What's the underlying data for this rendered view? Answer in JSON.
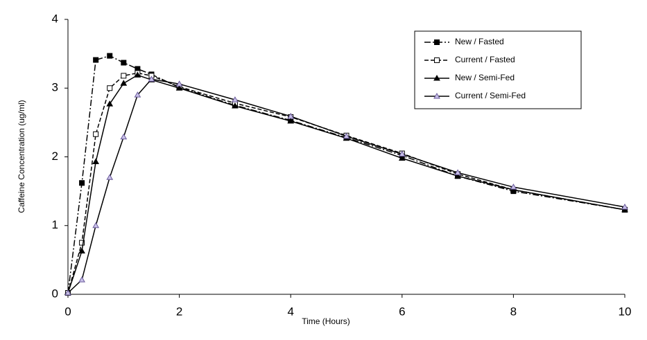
{
  "chart_data": {
    "type": "line",
    "xlabel": "Time (Hours)",
    "ylabel": "Caffeine Concentration (ug/ml)",
    "x": [
      0,
      0.25,
      0.5,
      0.75,
      1,
      1.25,
      1.5,
      2,
      3,
      4,
      5,
      6,
      7,
      8,
      10
    ],
    "xlim": [
      0,
      10
    ],
    "xticks": [
      0,
      2,
      4,
      6,
      8,
      10
    ],
    "ylim": [
      0,
      4
    ],
    "yticks": [
      0,
      1,
      2,
      3,
      4
    ],
    "grid": false,
    "legend": "top-right",
    "series": [
      {
        "name": "New / Fasted",
        "color": "#000000",
        "marker": "square",
        "marker_fill": "#000000",
        "dash": "dash-dot",
        "values": [
          0.02,
          1.62,
          3.41,
          3.47,
          3.37,
          3.28,
          3.2,
          3.01,
          2.75,
          2.53,
          2.28,
          2.02,
          1.72,
          1.5,
          1.23
        ]
      },
      {
        "name": "Current / Fasted",
        "color": "#000000",
        "marker": "square",
        "marker_fill": "#ffffff",
        "dash": "dashed",
        "values": [
          0.02,
          0.75,
          2.33,
          3.0,
          3.18,
          3.22,
          3.18,
          3.02,
          2.78,
          2.58,
          2.31,
          2.05,
          1.75,
          1.52,
          1.23
        ]
      },
      {
        "name": "New / Semi-Fed",
        "color": "#000000",
        "marker": "triangle",
        "marker_fill": "#000000",
        "dash": "solid",
        "values": [
          0.02,
          0.63,
          1.93,
          2.77,
          3.07,
          3.19,
          3.12,
          3.0,
          2.74,
          2.52,
          2.27,
          1.98,
          1.72,
          1.52,
          1.23
        ]
      },
      {
        "name": "Current / Semi-Fed",
        "color": "#000000",
        "marker": "triangle",
        "marker_fill": "#c8c0e8",
        "marker_edge": "#6a5a9a",
        "dash": "solid",
        "values": [
          0.02,
          0.21,
          1.0,
          1.7,
          2.29,
          2.9,
          3.13,
          3.06,
          2.83,
          2.59,
          2.3,
          2.04,
          1.77,
          1.56,
          1.27
        ]
      }
    ]
  }
}
